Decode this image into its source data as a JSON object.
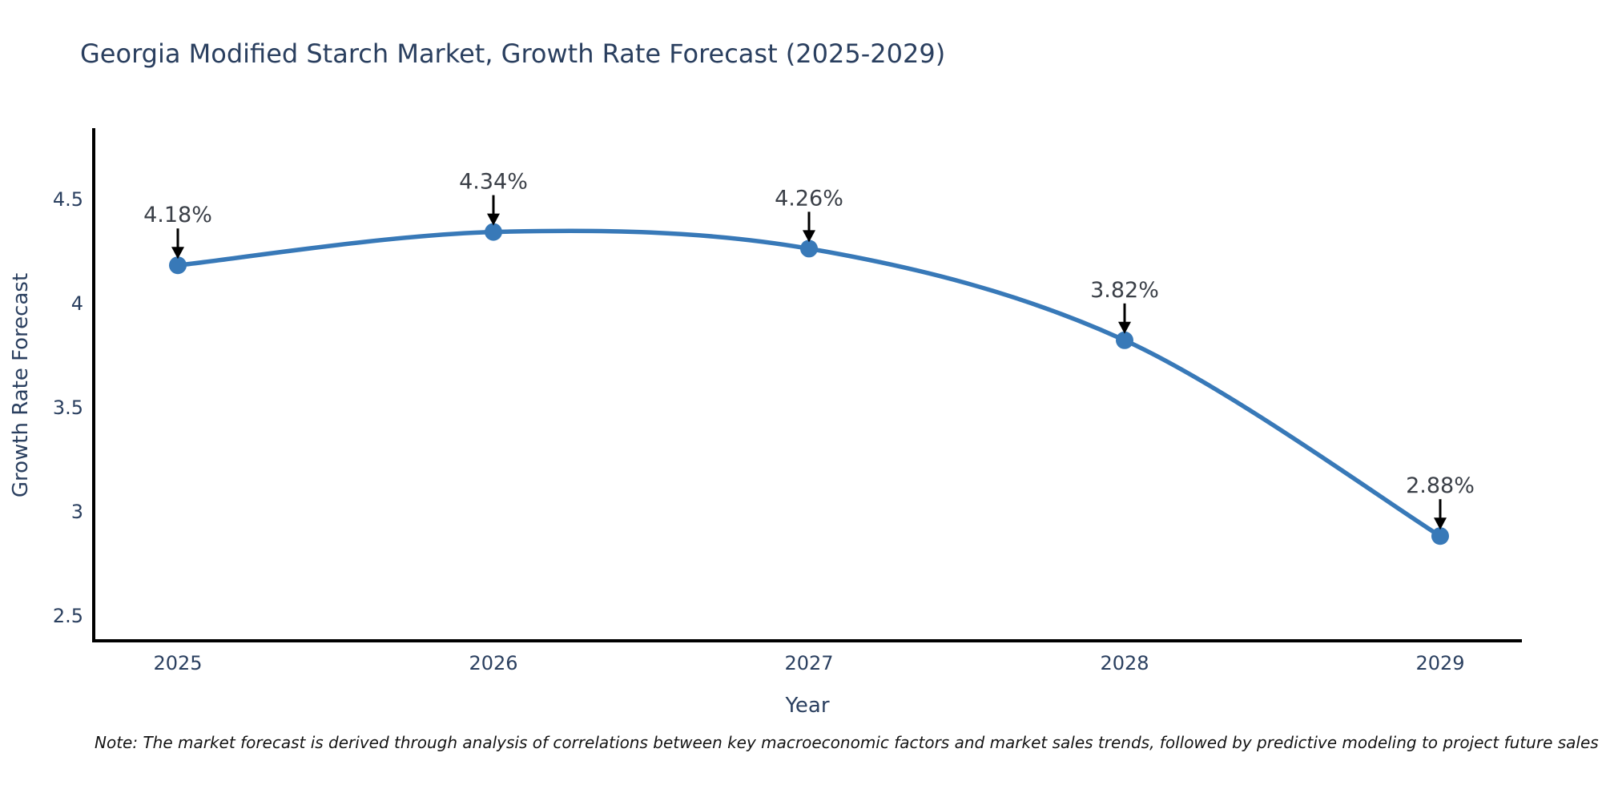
{
  "title": "Georgia Modified Starch Market, Growth Rate Forecast (2025-2029)",
  "note": "Note: The market forecast is derived through analysis of correlations between key macroeconomic factors and market sales trends, followed by predictive modeling to project future sales",
  "chart_data": {
    "type": "line",
    "title": "Georgia Modified Starch Market, Growth Rate Forecast (2025-2029)",
    "xlabel": "Year",
    "ylabel": "Growth Rate Forecast",
    "x": [
      2025,
      2026,
      2027,
      2028,
      2029
    ],
    "x_tick_labels": [
      "2025",
      "2026",
      "2027",
      "2028",
      "2029"
    ],
    "series": [
      {
        "name": "Growth Rate Forecast",
        "values": [
          4.18,
          4.34,
          4.26,
          3.82,
          2.88
        ]
      }
    ],
    "point_labels": [
      "4.18%",
      "4.34%",
      "4.26%",
      "3.82%",
      "2.88%"
    ],
    "y_ticks": [
      4.5,
      4.0,
      3.5,
      3.0,
      2.5
    ],
    "y_tick_labels": [
      "4.5",
      "4",
      "3.5",
      "3",
      "2.5"
    ],
    "xlim": [
      2024.73,
      2029.26
    ],
    "ylim": [
      2.38,
      4.84
    ],
    "line_shape": "spline",
    "grid": false,
    "legend_position": "none",
    "annotation_style": "black-arrow-above-point",
    "colors": {
      "line": "#3879b8",
      "marker": "#3879b8",
      "axis_spine": "#000000",
      "tick_label": "#2a3f5f",
      "title": "#2a3f5f",
      "annotation_text": "#3a3f47",
      "arrow": "#000000",
      "note_text": "#141414",
      "background": "#ffffff"
    }
  }
}
